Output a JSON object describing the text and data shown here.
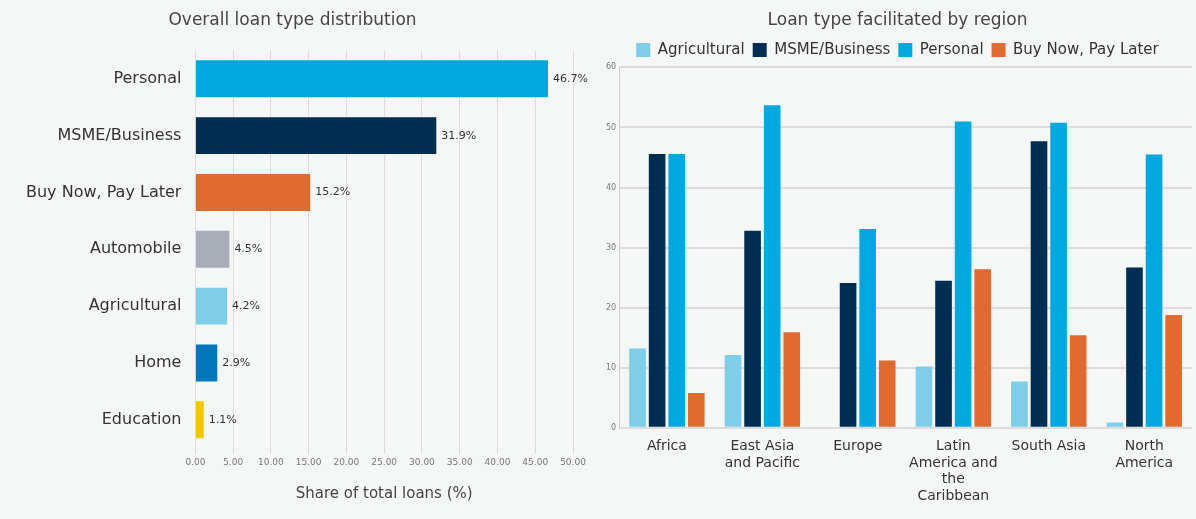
{
  "chart_data": [
    {
      "type": "bar",
      "orientation": "horizontal",
      "title": "Overall loan type distribution",
      "xlabel": "Share of total loans (%)",
      "categories": [
        "Personal",
        "MSME/Business",
        "Buy Now, Pay Later",
        "Automobile",
        "Agricultural",
        "Home",
        "Education"
      ],
      "values": [
        46.7,
        31.9,
        15.2,
        4.5,
        4.2,
        2.9,
        1.1
      ],
      "colors": [
        "#00a8e0",
        "#002d52",
        "#e06b30",
        "#a9adb8",
        "#7ecde9",
        "#0076bd",
        "#f5c400"
      ],
      "value_labels": [
        "46.7%",
        "31.9%",
        "15.2%",
        "4.5%",
        "4.2%",
        "2.9%",
        "1.1%"
      ],
      "xlim": [
        0,
        50
      ],
      "xticks": [
        {
          "value": 0,
          "label": "0.00"
        },
        {
          "value": 5,
          "label": "5.00"
        },
        {
          "value": 10,
          "label": "10.00"
        },
        {
          "value": 15,
          "label": "15.00"
        },
        {
          "value": 20,
          "label": "20.00"
        },
        {
          "value": 25,
          "label": "25.00"
        },
        {
          "value": 30,
          "label": "30.00"
        },
        {
          "value": 35,
          "label": "35.00"
        },
        {
          "value": 40,
          "label": "40.00"
        },
        {
          "value": 45,
          "label": "45.00"
        },
        {
          "value": 50,
          "label": "50.00"
        }
      ],
      "grid": "x",
      "legend": false
    },
    {
      "type": "bar",
      "title": "Loan type facilitated by region",
      "categories": [
        "Africa",
        "East Asia and Pacific",
        "Europe",
        "Latin America and the Caribbean",
        "South Asia",
        "North America"
      ],
      "series": [
        {
          "name": "Agricultural",
          "color": "#7ecde9",
          "values": [
            13.2,
            12.1,
            null,
            10.2,
            7.7,
            0.9
          ]
        },
        {
          "name": "MSME/Business",
          "color": "#002d52",
          "values": [
            45.6,
            32.8,
            24.1,
            24.5,
            47.7,
            26.7
          ]
        },
        {
          "name": "Personal",
          "color": "#00a8e0",
          "values": [
            45.6,
            53.7,
            33.1,
            51.0,
            50.8,
            45.5
          ]
        },
        {
          "name": "Buy Now, Pay Later",
          "color": "#e06b30",
          "values": [
            5.8,
            15.9,
            11.2,
            26.4,
            15.4,
            18.8
          ]
        }
      ],
      "ylim": [
        0,
        60
      ],
      "yticks": [
        0,
        10,
        20,
        30,
        40,
        50,
        60
      ],
      "grid": "y",
      "legend": "top"
    }
  ]
}
